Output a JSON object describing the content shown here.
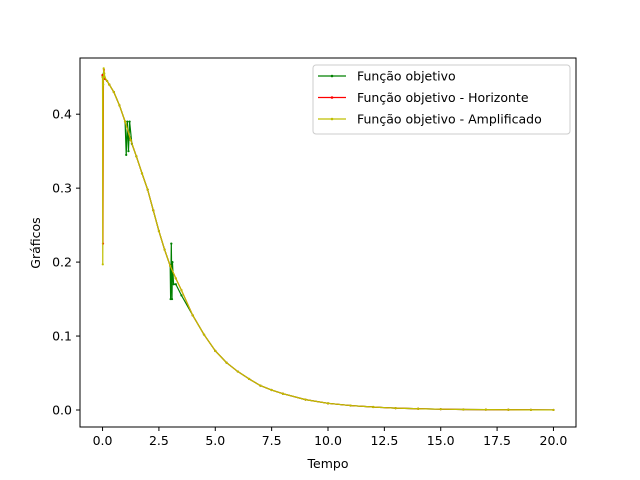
{
  "chart_data": {
    "type": "line",
    "title": "",
    "xlabel": "Tempo",
    "ylabel": "Gráficos",
    "xlim": [
      -1.0,
      21.0
    ],
    "ylim": [
      -0.023,
      0.476
    ],
    "xticks": [
      0.0,
      2.5,
      5.0,
      7.5,
      10.0,
      12.5,
      15.0,
      17.5,
      20.0
    ],
    "xtick_labels": [
      "0.0",
      "2.5",
      "5.0",
      "7.5",
      "10.0",
      "12.5",
      "15.0",
      "17.5",
      "20.0"
    ],
    "yticks": [
      0.0,
      0.1,
      0.2,
      0.3,
      0.4
    ],
    "ytick_labels": [
      "0.0",
      "0.1",
      "0.2",
      "0.3",
      "0.4"
    ],
    "grid": false,
    "legend_position": "top-right",
    "series": [
      {
        "name": "Função objetivo",
        "color": "#008000",
        "x": [
          0,
          0.05,
          0.1,
          0.2,
          0.3,
          0.5,
          0.75,
          1.0,
          1.05,
          1.1,
          1.15,
          1.2,
          1.3,
          1.5,
          1.75,
          2.0,
          2.25,
          2.5,
          2.75,
          3.0,
          3.02,
          3.05,
          3.08,
          3.1,
          3.15,
          3.25,
          3.5,
          4.0,
          4.5,
          5.0,
          5.5,
          6.0,
          6.5,
          7.0,
          7.5,
          8.0,
          9.0,
          10.0,
          11.0,
          12.0,
          13.0,
          14.0,
          15.0,
          16.0,
          17.0,
          18.0,
          19.0,
          20.0
        ],
        "y": [
          0.452,
          0.455,
          0.448,
          0.445,
          0.44,
          0.43,
          0.412,
          0.39,
          0.345,
          0.39,
          0.35,
          0.39,
          0.36,
          0.343,
          0.32,
          0.298,
          0.27,
          0.242,
          0.217,
          0.195,
          0.15,
          0.225,
          0.15,
          0.2,
          0.17,
          0.17,
          0.155,
          0.128,
          0.102,
          0.08,
          0.064,
          0.052,
          0.042,
          0.033,
          0.027,
          0.022,
          0.014,
          0.009,
          0.006,
          0.004,
          0.0025,
          0.0017,
          0.0011,
          0.0007,
          0.0005,
          0.0003,
          0.0002,
          0.0001
        ]
      },
      {
        "name": "Função objetivo - Horizonte",
        "color": "#ff0000",
        "x": [
          0,
          0.02,
          0.04,
          0.06,
          0.1,
          0.2,
          0.3,
          0.5,
          0.75,
          1.0,
          1.25,
          1.5,
          1.75,
          2.0,
          2.25,
          2.5,
          2.75,
          3.0,
          3.25,
          3.5,
          4.0,
          4.5,
          5.0,
          5.5,
          6.0,
          6.5,
          7.0,
          7.5,
          8.0,
          9.0,
          10.0,
          11.0,
          12.0,
          13.0,
          14.0,
          15.0,
          16.0,
          17.0,
          18.0,
          19.0,
          20.0
        ],
        "y": [
          0.453,
          0.225,
          0.45,
          0.46,
          0.448,
          0.445,
          0.44,
          0.43,
          0.412,
          0.39,
          0.365,
          0.343,
          0.32,
          0.298,
          0.27,
          0.242,
          0.217,
          0.195,
          0.178,
          0.162,
          0.128,
          0.102,
          0.08,
          0.064,
          0.052,
          0.042,
          0.033,
          0.027,
          0.022,
          0.014,
          0.009,
          0.006,
          0.004,
          0.0025,
          0.0017,
          0.0011,
          0.0007,
          0.0005,
          0.0003,
          0.0002,
          0.0001
        ]
      },
      {
        "name": "Função objetivo - Amplificado",
        "color": "#bfbf00",
        "x": [
          0,
          0.01,
          0.03,
          0.05,
          0.08,
          0.1,
          0.2,
          0.3,
          0.5,
          0.75,
          1.0,
          1.25,
          1.5,
          1.75,
          2.0,
          2.25,
          2.5,
          2.75,
          3.0,
          3.25,
          3.5,
          4.0,
          4.5,
          5.0,
          5.5,
          6.0,
          6.5,
          7.0,
          7.5,
          8.0,
          9.0,
          10.0,
          11.0,
          12.0,
          13.0,
          14.0,
          15.0,
          16.0,
          17.0,
          18.0,
          19.0,
          20.0
        ],
        "y": [
          0.45,
          0.197,
          0.44,
          0.462,
          0.455,
          0.45,
          0.445,
          0.44,
          0.43,
          0.412,
          0.39,
          0.365,
          0.343,
          0.32,
          0.298,
          0.27,
          0.242,
          0.217,
          0.195,
          0.178,
          0.162,
          0.128,
          0.102,
          0.08,
          0.064,
          0.052,
          0.042,
          0.033,
          0.027,
          0.022,
          0.014,
          0.009,
          0.006,
          0.004,
          0.0025,
          0.0017,
          0.0011,
          0.0007,
          0.0005,
          0.0003,
          0.0002,
          0.0001
        ]
      }
    ]
  }
}
